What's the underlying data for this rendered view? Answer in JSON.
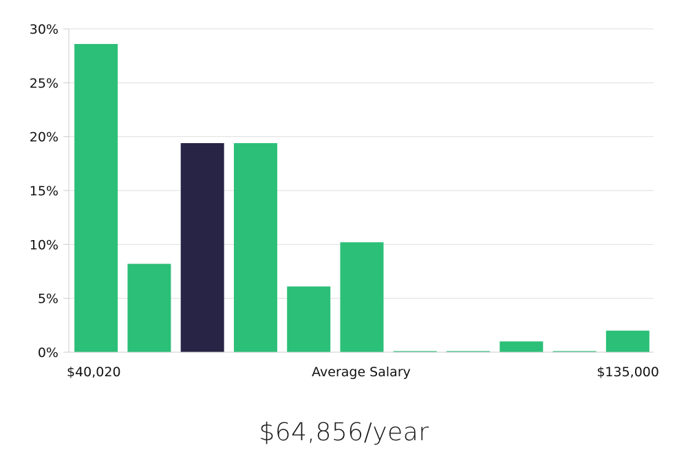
{
  "chart_data": {
    "type": "bar",
    "title": "",
    "xlabel": "Average Salary",
    "ylabel": "",
    "x_start_label": "$40,020",
    "x_end_label": "$135,000",
    "y_ticks": [
      "0%",
      "5%",
      "10%",
      "15%",
      "20%",
      "25%",
      "30%"
    ],
    "ylim": [
      0,
      30
    ],
    "grid": true,
    "values": [
      28.6,
      8.2,
      19.4,
      19.4,
      6.1,
      10.2,
      0.1,
      0.1,
      1.0,
      0.1,
      2.0
    ],
    "highlight_index": 2,
    "colors": {
      "bar": "#2bbf77",
      "highlight": "#272445",
      "grid": "#dedede",
      "axis": "#cccccc"
    }
  },
  "summary": {
    "salary": "$64,856/year"
  }
}
